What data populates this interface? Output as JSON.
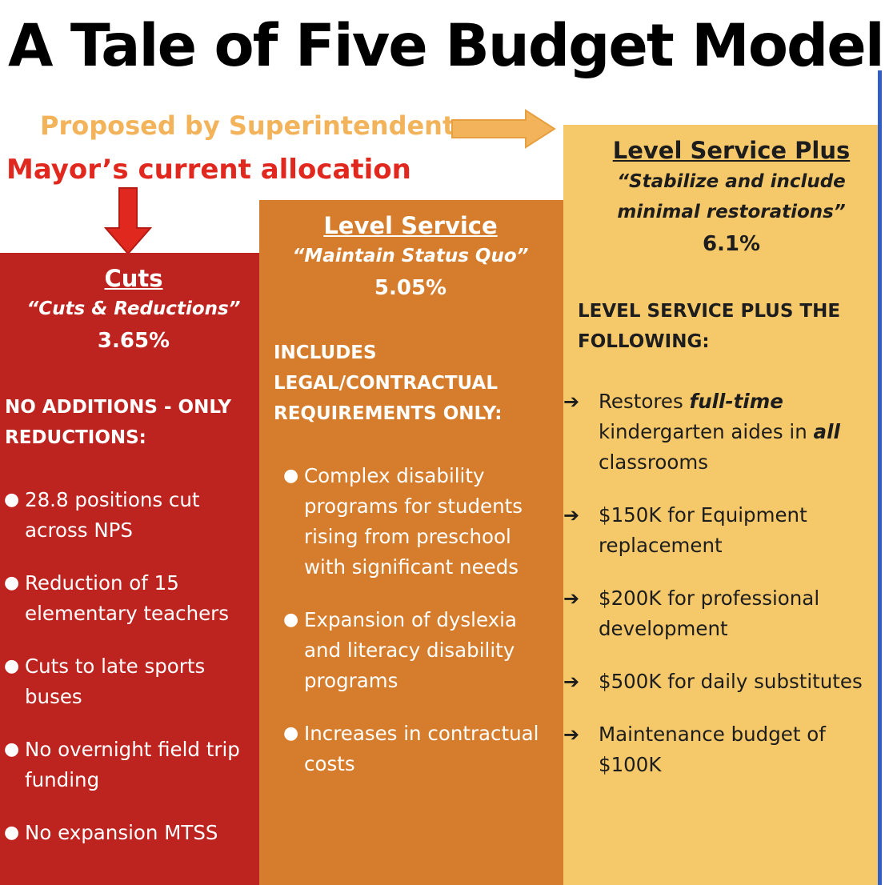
{
  "title": "A Tale of Five Budget Models",
  "proposed_label": "Proposed by Superintendent",
  "mayor_label": "Mayor’s current allocation",
  "colors": {
    "cuts": "#bd2420",
    "level_service": "#d57d2c",
    "level_service_plus": "#f5c96a",
    "proposed_text": "#f2b35b",
    "mayor_text": "#e0281f"
  },
  "columns": [
    {
      "name": "Cuts",
      "quote": "“Cuts & Reductions”",
      "percent": "3.65%",
      "section_label": "NO ADDITIONS - ONLY REDUCTIONS:",
      "items": [
        "28.8 positions cut across NPS",
        "Reduction of 15 elementary teachers",
        "Cuts to late sports buses",
        "No overnight field trip funding",
        "No expansion MTSS"
      ]
    },
    {
      "name": "Level Service",
      "quote": "“Maintain Status Quo”",
      "percent": "5.05%",
      "section_label": "INCLUDES LEGAL/CONTRACTUAL REQUIREMENTS ONLY:",
      "items": [
        "Complex disability programs for students rising from preschool with significant needs",
        "Expansion of dyslexia and literacy disability programs",
        "Increases in contractual costs"
      ]
    },
    {
      "name": "Level Service Plus",
      "quote": "“Stabilize and include minimal restorations”",
      "percent": "6.1%",
      "section_label": "LEVEL SERVICE PLUS THE FOLLOWING:",
      "items": [
        "$150K for Equipment replacement",
        "$200K for professional development",
        "$500K for daily substitutes",
        "Maintenance budget of $100K"
      ],
      "first_item": {
        "p1": "Restores ",
        "em1": "full-time",
        "p2": " kindergarten aides in ",
        "em2": "all",
        "p3": " classrooms"
      }
    }
  ]
}
